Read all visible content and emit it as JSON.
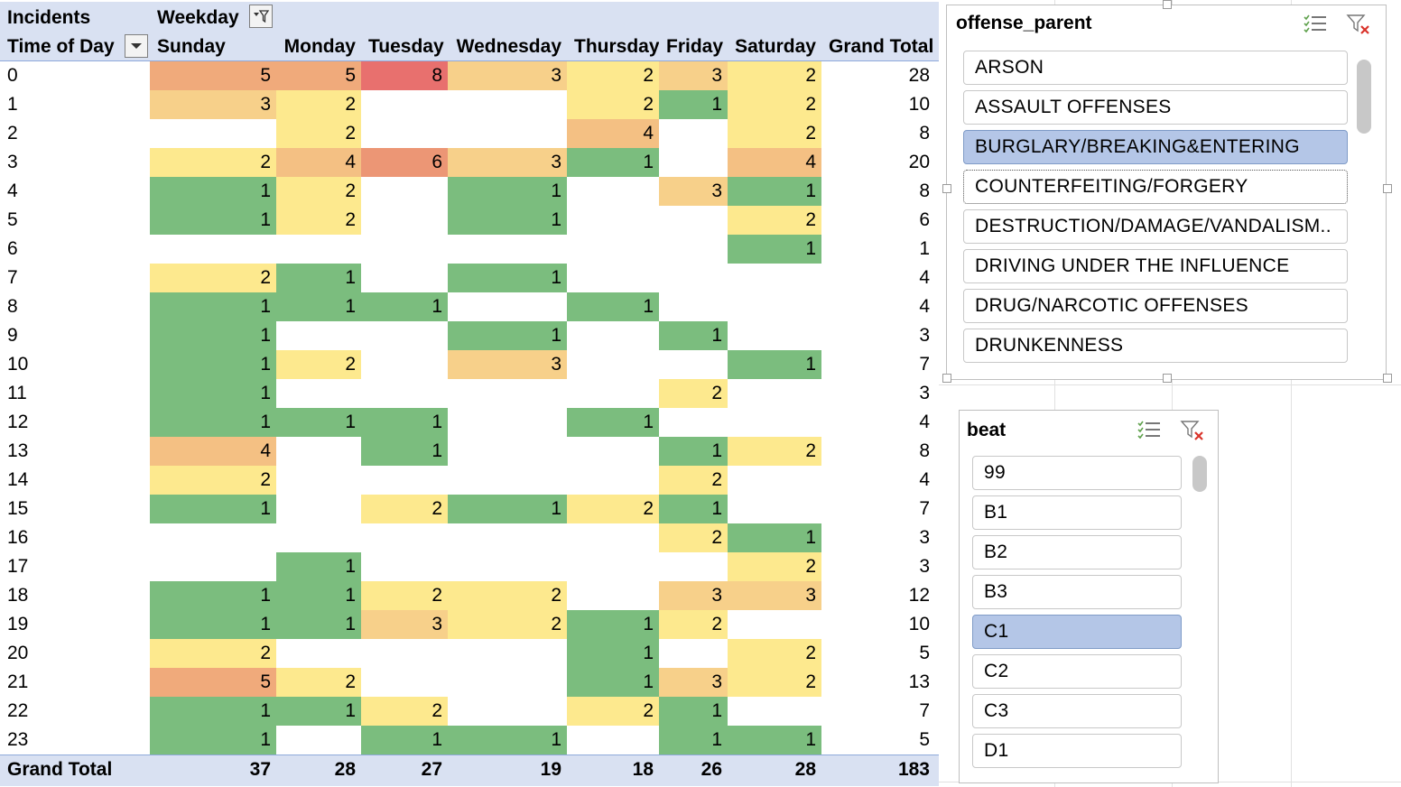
{
  "pivot": {
    "corner_label": "Incidents",
    "col_field_label": "Weekday",
    "row_field_label": "Time of Day",
    "columns": [
      "Sunday",
      "Monday",
      "Tuesday",
      "Wednesday",
      "Thursday",
      "Friday",
      "Saturday",
      "Grand Total"
    ],
    "rows": [
      {
        "label": "0",
        "values": [
          "5",
          "5",
          "8",
          "3",
          "2",
          "3",
          "2",
          "28"
        ]
      },
      {
        "label": "1",
        "values": [
          "3",
          "2",
          "",
          "",
          "2",
          "1",
          "2",
          "10"
        ]
      },
      {
        "label": "2",
        "values": [
          "",
          "2",
          "",
          "",
          "4",
          "",
          "2",
          "8"
        ]
      },
      {
        "label": "3",
        "values": [
          "2",
          "4",
          "6",
          "3",
          "1",
          "",
          "4",
          "20"
        ]
      },
      {
        "label": "4",
        "values": [
          "1",
          "2",
          "",
          "1",
          "",
          "3",
          "1",
          "8"
        ]
      },
      {
        "label": "5",
        "values": [
          "1",
          "2",
          "",
          "1",
          "",
          "",
          "2",
          "6"
        ]
      },
      {
        "label": "6",
        "values": [
          "",
          "",
          "",
          "",
          "",
          "",
          "1",
          "1"
        ]
      },
      {
        "label": "7",
        "values": [
          "2",
          "1",
          "",
          "1",
          "",
          "",
          "",
          "4"
        ]
      },
      {
        "label": "8",
        "values": [
          "1",
          "1",
          "1",
          "",
          "1",
          "",
          "",
          "4"
        ]
      },
      {
        "label": "9",
        "values": [
          "1",
          "",
          "",
          "1",
          "",
          "1",
          "",
          "3"
        ]
      },
      {
        "label": "10",
        "values": [
          "1",
          "2",
          "",
          "3",
          "",
          "",
          "1",
          "7"
        ]
      },
      {
        "label": "11",
        "values": [
          "1",
          "",
          "",
          "",
          "",
          "2",
          "",
          "3"
        ]
      },
      {
        "label": "12",
        "values": [
          "1",
          "1",
          "1",
          "",
          "1",
          "",
          "",
          "4"
        ]
      },
      {
        "label": "13",
        "values": [
          "4",
          "",
          "1",
          "",
          "",
          "1",
          "2",
          "8"
        ]
      },
      {
        "label": "14",
        "values": [
          "2",
          "",
          "",
          "",
          "",
          "2",
          "",
          "4"
        ]
      },
      {
        "label": "15",
        "values": [
          "1",
          "",
          "2",
          "1",
          "2",
          "1",
          "",
          "7"
        ]
      },
      {
        "label": "16",
        "values": [
          "",
          "",
          "",
          "",
          "",
          "2",
          "1",
          "3"
        ]
      },
      {
        "label": "17",
        "values": [
          "",
          "1",
          "",
          "",
          "",
          "",
          "2",
          "3"
        ]
      },
      {
        "label": "18",
        "values": [
          "1",
          "1",
          "2",
          "2",
          "",
          "3",
          "3",
          "12"
        ]
      },
      {
        "label": "19",
        "values": [
          "1",
          "1",
          "3",
          "2",
          "1",
          "2",
          "",
          "10"
        ]
      },
      {
        "label": "20",
        "values": [
          "2",
          "",
          "",
          "",
          "1",
          "",
          "2",
          "5"
        ]
      },
      {
        "label": "21",
        "values": [
          "5",
          "2",
          "",
          "",
          "1",
          "3",
          "2",
          "13"
        ]
      },
      {
        "label": "22",
        "values": [
          "1",
          "1",
          "2",
          "",
          "2",
          "1",
          "",
          "7"
        ]
      },
      {
        "label": "23",
        "values": [
          "1",
          "",
          "1",
          "1",
          "",
          "1",
          "1",
          "5"
        ]
      }
    ],
    "grand_total": {
      "label": "Grand Total",
      "values": [
        "37",
        "28",
        "27",
        "19",
        "18",
        "26",
        "28",
        "183"
      ]
    },
    "color_scale": {
      "1": "#7bbd7e",
      "2": "#fde98e",
      "3": "#f7d08a",
      "4": "#f4c083",
      "5": "#f0aa7b",
      "6": "#ec9675",
      "8": "#e8706e"
    }
  },
  "slicer_offense": {
    "title": "offense_parent",
    "items": [
      {
        "label": "ARSON",
        "state": "normal"
      },
      {
        "label": "ASSAULT OFFENSES",
        "state": "normal"
      },
      {
        "label": "BURGLARY/BREAKING&ENTERING",
        "state": "selected"
      },
      {
        "label": "COUNTERFEITING/FORGERY",
        "state": "focus"
      },
      {
        "label": "DESTRUCTION/DAMAGE/VANDALISM..",
        "state": "normal"
      },
      {
        "label": "DRIVING UNDER THE INFLUENCE",
        "state": "normal"
      },
      {
        "label": "DRUG/NARCOTIC OFFENSES",
        "state": "normal"
      },
      {
        "label": "DRUNKENNESS",
        "state": "normal"
      }
    ]
  },
  "slicer_beat": {
    "title": "beat",
    "items": [
      {
        "label": "99",
        "state": "normal"
      },
      {
        "label": "B1",
        "state": "normal"
      },
      {
        "label": "B2",
        "state": "normal"
      },
      {
        "label": "B3",
        "state": "normal"
      },
      {
        "label": "C1",
        "state": "selected"
      },
      {
        "label": "C2",
        "state": "normal"
      },
      {
        "label": "C3",
        "state": "normal"
      },
      {
        "label": "D1",
        "state": "normal"
      }
    ]
  },
  "icons": {
    "multi_select": "multi-select-icon",
    "clear_filter": "clear-filter-icon",
    "filter_dropdown": "filter-dropdown-icon"
  }
}
